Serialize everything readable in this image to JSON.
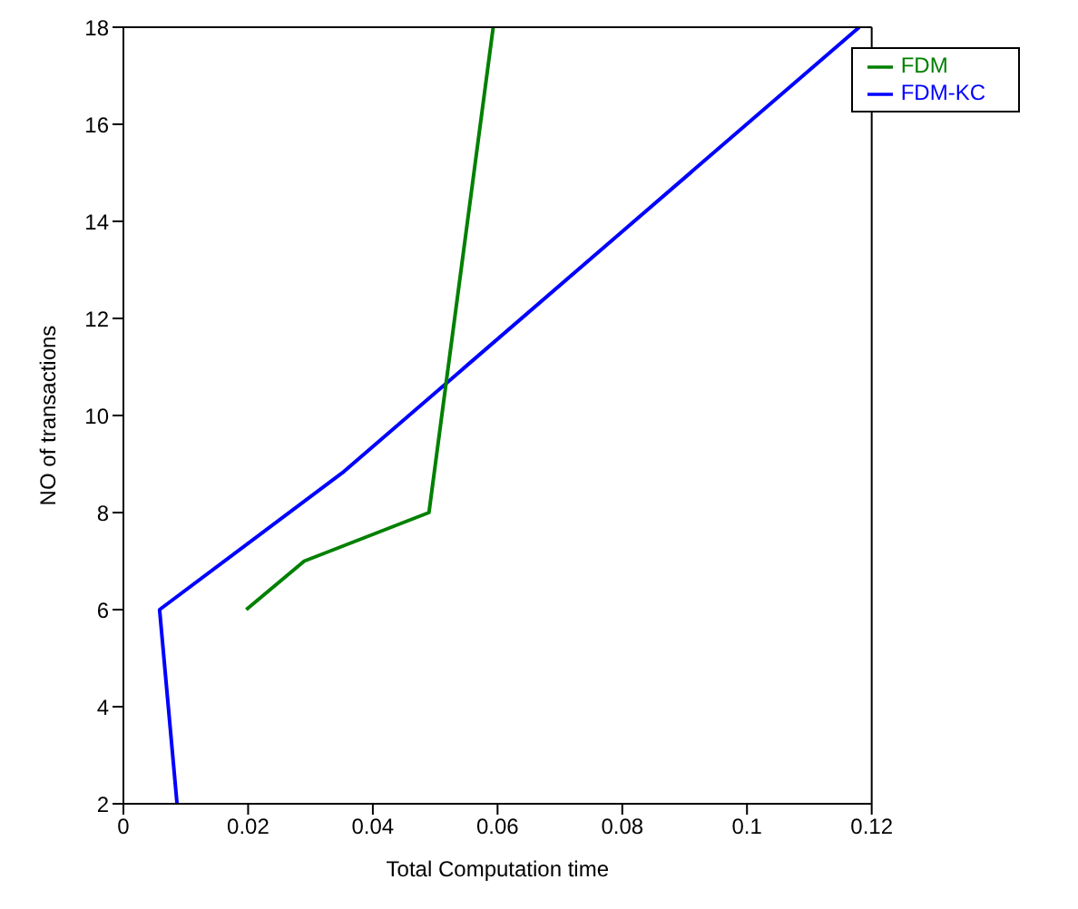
{
  "chart_data": {
    "type": "line",
    "xlabel": "Total Computation time",
    "ylabel": "NO of transactions",
    "xlim": [
      0,
      0.12
    ],
    "xticks": [
      0,
      0.02,
      0.04,
      0.06,
      0.08,
      0.1,
      0.12
    ],
    "ylim": [
      2,
      18
    ],
    "yticks": [
      2,
      4,
      6,
      8,
      10,
      12,
      14,
      16,
      18
    ],
    "legend": "top right",
    "grid": false,
    "marker": "none",
    "line_style": "solid",
    "series": [
      {
        "name": "FDM-KC",
        "color": "#0000ff",
        "x": [
          0.0086,
          0.0058,
          0.0354,
          0.118
        ],
        "values": [
          2,
          6,
          8.85,
          18
        ]
      },
      {
        "name": "FDM",
        "color": "#008000",
        "x": [
          0.0197,
          0.029,
          0.049,
          0.0593
        ],
        "values": [
          6,
          7,
          8,
          18
        ]
      }
    ]
  }
}
